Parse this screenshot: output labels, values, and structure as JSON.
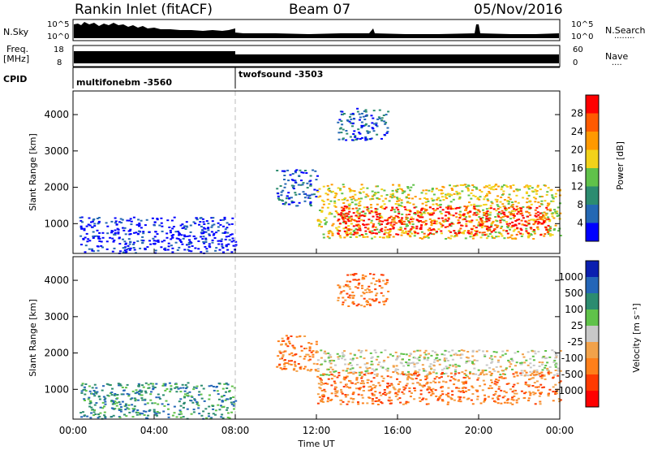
{
  "header": {
    "station": "Rankin Inlet (fitACF)",
    "beam": "Beam 07",
    "date": "05/Nov/2016"
  },
  "top_panels": {
    "nsky_label": "N.Sky",
    "nsky_ticks": [
      "10^5",
      "10^0"
    ],
    "nsearch_label": "N.Search",
    "nsearch_ticks": [
      "10^5",
      "10^0"
    ],
    "freq_label_1": "Freq.",
    "freq_label_2": "[MHz]",
    "freq_ticks": [
      "18",
      "8"
    ],
    "nave_label": "Nave",
    "nave_ticks": [
      "60",
      "0"
    ],
    "cpid_label": "CPID",
    "cpid_segments": [
      {
        "name": "multifonebm -3560",
        "start_h": 0,
        "end_h": 8
      },
      {
        "name": "twofsound -3503",
        "start_h": 8,
        "end_h": 24
      }
    ]
  },
  "chart_data": [
    {
      "type": "heatmap",
      "name": "power",
      "ylabel": "Slant Range [km]",
      "xlabel": "Time UT",
      "x_ticks": [
        "00:00",
        "04:00",
        "08:00",
        "12:00",
        "16:00",
        "20:00",
        "00:00"
      ],
      "x_range_hours": [
        0,
        24
      ],
      "y_ticks": [
        1000,
        2000,
        3000,
        4000
      ],
      "y_range_km": [
        180,
        4650
      ],
      "colorbar_label": "Power [dB]",
      "colorbar_ticks": [
        "28",
        "24",
        "20",
        "16",
        "12",
        "8",
        "4"
      ],
      "colorbar_colors": [
        "#ff0000",
        "#ff5a00",
        "#ff9900",
        "#f2d21a",
        "#60c24a",
        "#2c8c70",
        "#2468b4",
        "#0000ff"
      ],
      "regions": [
        {
          "t0": 0.3,
          "t1": 8,
          "r0": 200,
          "r1": 1200,
          "level": 7
        },
        {
          "t0": 10,
          "t1": 12,
          "r0": 1500,
          "r1": 2500,
          "level": 6
        },
        {
          "t0": 12,
          "t1": 24,
          "r0": 600,
          "r1": 2100,
          "level": 3
        },
        {
          "t0": 13,
          "t1": 23.5,
          "r0": 700,
          "r1": 1500,
          "level": 0
        },
        {
          "t0": 13,
          "t1": 15.5,
          "r0": 3300,
          "r1": 4200,
          "level": 6
        }
      ]
    },
    {
      "type": "heatmap",
      "name": "velocity",
      "ylabel": "Slant Range [km]",
      "xlabel": "Time UT",
      "x_ticks": [
        "00:00",
        "04:00",
        "08:00",
        "12:00",
        "16:00",
        "20:00",
        "00:00"
      ],
      "x_range_hours": [
        0,
        24
      ],
      "y_ticks": [
        1000,
        2000,
        3000,
        4000
      ],
      "y_range_km": [
        180,
        4650
      ],
      "colorbar_label": "Velocity [m s⁻¹]",
      "colorbar_ticks": [
        "1000",
        "500",
        "100",
        "25",
        "-25",
        "-100",
        "-500",
        "-1000"
      ],
      "colorbar_colors": [
        "#0b1fb0",
        "#2466b8",
        "#2c8c70",
        "#60c24a",
        "#c8c8c8",
        "#f2a24a",
        "#ff7f1a",
        "#ff3a00",
        "#ff0000"
      ],
      "regions": [
        {
          "t0": 0.3,
          "t1": 8,
          "r0": 200,
          "r1": 1200,
          "level": 2
        },
        {
          "t0": 10,
          "t1": 12,
          "r0": 1500,
          "r1": 2500,
          "level": 6
        },
        {
          "t0": 12,
          "t1": 24,
          "r0": 1400,
          "r1": 2100,
          "level": 4
        },
        {
          "t0": 12,
          "t1": 24,
          "r0": 600,
          "r1": 1500,
          "level": 6
        },
        {
          "t0": 13,
          "t1": 15.5,
          "r0": 3300,
          "r1": 4200,
          "level": 6
        }
      ]
    }
  ]
}
